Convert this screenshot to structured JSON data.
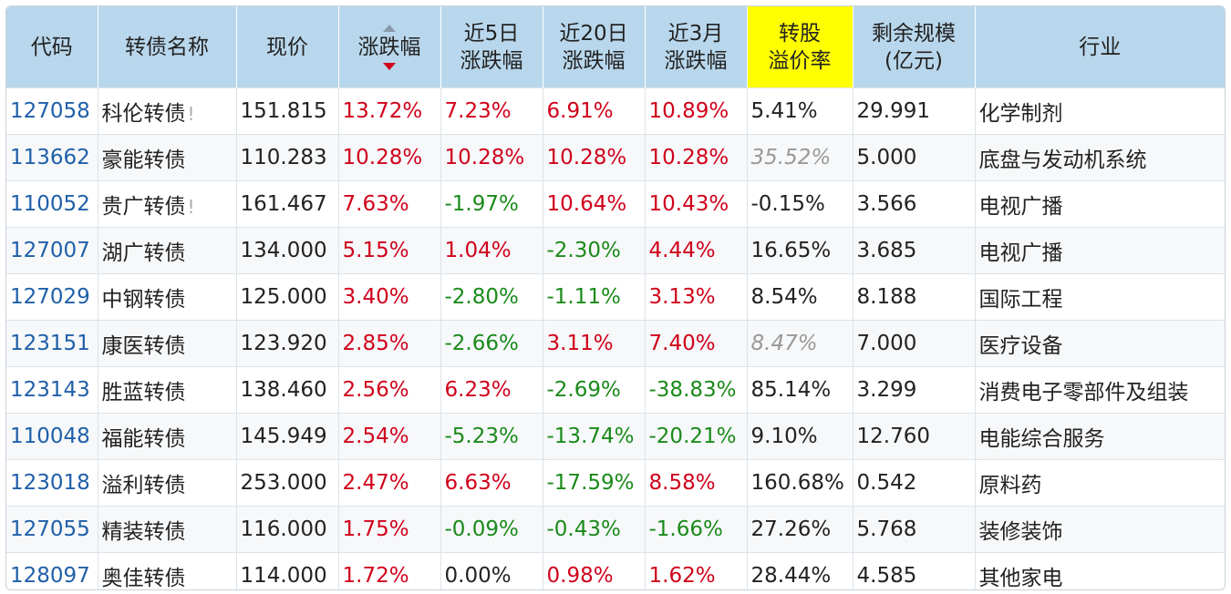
{
  "headers": [
    {
      "lines": [
        "代码"
      ]
    },
    {
      "lines": [
        "转债名称"
      ]
    },
    {
      "lines": [
        "现价"
      ]
    },
    {
      "lines": [
        "涨跌幅"
      ]
    },
    {
      "lines": [
        "近5日",
        "涨跌幅"
      ]
    },
    {
      "lines": [
        "近20日",
        "涨跌幅"
      ]
    },
    {
      "lines": [
        "近3月",
        "涨跌幅"
      ]
    },
    {
      "lines": [
        "转股",
        "溢价率"
      ]
    },
    {
      "lines": [
        "剩余规模",
        "(亿元)"
      ]
    },
    {
      "lines": [
        "行业"
      ]
    }
  ],
  "sort": {
    "column": "涨跌幅",
    "direction": "desc"
  },
  "colors": {
    "header_bg": "#b9d7ec",
    "highlight_header": "#ffff00",
    "up": "#d0021b",
    "down": "#1a8a1a",
    "code": "#1f5fa8",
    "muted": "#999999"
  },
  "rows": [
    {
      "code": "127058",
      "name": "科伦转债",
      "flag": "!",
      "price": "151.815",
      "chg": "13.72%",
      "chg_c": "red",
      "chg5": "7.23%",
      "chg5_c": "red",
      "chg20": "6.91%",
      "chg20_c": "red",
      "chg3m": "10.89%",
      "chg3m_c": "red",
      "premium": "5.41%",
      "premium_muted": false,
      "size": "29.991",
      "industry": "化学制剂"
    },
    {
      "code": "113662",
      "name": "豪能转债",
      "flag": "",
      "price": "110.283",
      "chg": "10.28%",
      "chg_c": "red",
      "chg5": "10.28%",
      "chg5_c": "red",
      "chg20": "10.28%",
      "chg20_c": "red",
      "chg3m": "10.28%",
      "chg3m_c": "red",
      "premium": "35.52%",
      "premium_muted": true,
      "size": "5.000",
      "industry": "底盘与发动机系统"
    },
    {
      "code": "110052",
      "name": "贵广转债",
      "flag": "!",
      "price": "161.467",
      "chg": "7.63%",
      "chg_c": "red",
      "chg5": "-1.97%",
      "chg5_c": "green",
      "chg20": "10.64%",
      "chg20_c": "red",
      "chg3m": "10.43%",
      "chg3m_c": "red",
      "premium": "-0.15%",
      "premium_muted": false,
      "size": "3.566",
      "industry": "电视广播"
    },
    {
      "code": "127007",
      "name": "湖广转债",
      "flag": "",
      "price": "134.000",
      "chg": "5.15%",
      "chg_c": "red",
      "chg5": "1.04%",
      "chg5_c": "red",
      "chg20": "-2.30%",
      "chg20_c": "green",
      "chg3m": "4.44%",
      "chg3m_c": "red",
      "premium": "16.65%",
      "premium_muted": false,
      "size": "3.685",
      "industry": "电视广播"
    },
    {
      "code": "127029",
      "name": "中钢转债",
      "flag": "",
      "price": "125.000",
      "chg": "3.40%",
      "chg_c": "red",
      "chg5": "-2.80%",
      "chg5_c": "green",
      "chg20": "-1.11%",
      "chg20_c": "green",
      "chg3m": "3.13%",
      "chg3m_c": "red",
      "premium": "8.54%",
      "premium_muted": false,
      "size": "8.188",
      "industry": "国际工程"
    },
    {
      "code": "123151",
      "name": "康医转债",
      "flag": "",
      "price": "123.920",
      "chg": "2.85%",
      "chg_c": "red",
      "chg5": "-2.66%",
      "chg5_c": "green",
      "chg20": "3.11%",
      "chg20_c": "red",
      "chg3m": "7.40%",
      "chg3m_c": "red",
      "premium": "8.47%",
      "premium_muted": true,
      "size": "7.000",
      "industry": "医疗设备"
    },
    {
      "code": "123143",
      "name": "胜蓝转债",
      "flag": "",
      "price": "138.460",
      "chg": "2.56%",
      "chg_c": "red",
      "chg5": "6.23%",
      "chg5_c": "red",
      "chg20": "-2.69%",
      "chg20_c": "green",
      "chg3m": "-38.83%",
      "chg3m_c": "green",
      "premium": "85.14%",
      "premium_muted": false,
      "size": "3.299",
      "industry": "消费电子零部件及组装"
    },
    {
      "code": "110048",
      "name": "福能转债",
      "flag": "",
      "price": "145.949",
      "chg": "2.54%",
      "chg_c": "red",
      "chg5": "-5.23%",
      "chg5_c": "green",
      "chg20": "-13.74%",
      "chg20_c": "green",
      "chg3m": "-20.21%",
      "chg3m_c": "green",
      "premium": "9.10%",
      "premium_muted": false,
      "size": "12.760",
      "industry": "电能综合服务"
    },
    {
      "code": "123018",
      "name": "溢利转债",
      "flag": "",
      "price": "253.000",
      "chg": "2.47%",
      "chg_c": "red",
      "chg5": "6.63%",
      "chg5_c": "red",
      "chg20": "-17.59%",
      "chg20_c": "green",
      "chg3m": "8.58%",
      "chg3m_c": "red",
      "premium": "160.68%",
      "premium_muted": false,
      "size": "0.542",
      "industry": "原料药"
    },
    {
      "code": "127055",
      "name": "精装转债",
      "flag": "",
      "price": "116.000",
      "chg": "1.75%",
      "chg_c": "red",
      "chg5": "-0.09%",
      "chg5_c": "green",
      "chg20": "-0.43%",
      "chg20_c": "green",
      "chg3m": "-1.66%",
      "chg3m_c": "green",
      "premium": "27.26%",
      "premium_muted": false,
      "size": "5.768",
      "industry": "装修装饰"
    },
    {
      "code": "128097",
      "name": "奥佳转债",
      "flag": "",
      "price": "114.000",
      "chg": "1.72%",
      "chg_c": "red",
      "chg5": "0.00%",
      "chg5_c": "",
      "chg20": "0.98%",
      "chg20_c": "red",
      "chg3m": "1.62%",
      "chg3m_c": "red",
      "premium": "28.44%",
      "premium_muted": false,
      "size": "4.585",
      "industry": "其他家电"
    }
  ]
}
